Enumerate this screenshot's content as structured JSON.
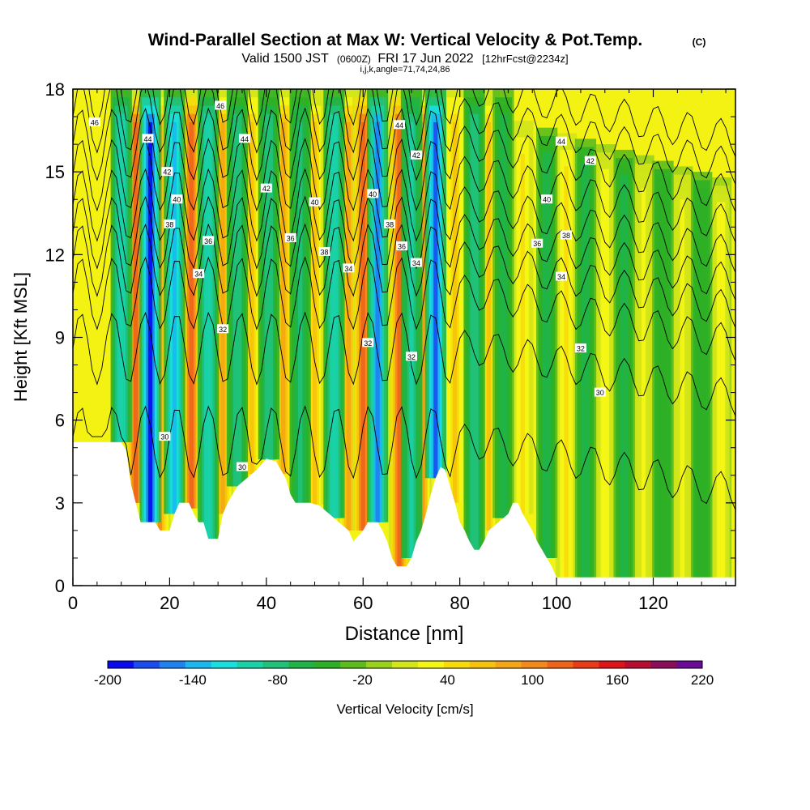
{
  "chart_data": {
    "type": "heatmap",
    "title": "Wind-Parallel Section at Max W: Vertical Velocity & Pot.Temp.",
    "title_mark": "(C)",
    "subtitle_main": "Valid 1500 JST",
    "subtitle_utc": "(0600Z)",
    "subtitle_date": "FRI 17 Jun 2022",
    "subtitle_fcst": "[12hrFcst@2234z]",
    "subtitle_index": "i,j,k,angle=71,74,24,86",
    "xlabel": "Distance [nm]",
    "ylabel": "Height [Kft MSL]",
    "xlim": [
      0,
      137
    ],
    "ylim": [
      0,
      18
    ],
    "x_ticks": [
      0,
      20,
      40,
      60,
      80,
      100,
      120
    ],
    "y_ticks": [
      0,
      3,
      6,
      9,
      12,
      15,
      18
    ],
    "colorbar": {
      "label": "Vertical Velocity [cm/s]",
      "min": -200,
      "max": 220,
      "step": 20,
      "tick_labels": [
        "-200",
        "-140",
        "-80",
        "-20",
        "40",
        "100",
        "160",
        "220"
      ],
      "colors": [
        "#0a0af0",
        "#1a4cf2",
        "#1e82f0",
        "#1ab8f0",
        "#18e0e0",
        "#1ad2a8",
        "#20c27a",
        "#20b448",
        "#2db026",
        "#5cbc1c",
        "#9ad21a",
        "#d2e61a",
        "#f6f614",
        "#f8dc0a",
        "#f6c20a",
        "#f4a614",
        "#f4881a",
        "#f0641a",
        "#ea3a18",
        "#de1418",
        "#b80c30",
        "#8c0c5a",
        "#6a0a96"
      ]
    },
    "updrafts": [
      {
        "x": 13.0,
        "w": 150
      },
      {
        "x": 18.0,
        "w": 120
      },
      {
        "x": 24.5,
        "w": 150
      },
      {
        "x": 31.0,
        "w": 110
      },
      {
        "x": 37.0,
        "w": 90
      },
      {
        "x": 43.5,
        "w": 100
      },
      {
        "x": 50.0,
        "w": 80
      },
      {
        "x": 57.0,
        "w": 110
      },
      {
        "x": 60.0,
        "w": 150
      },
      {
        "x": 67.5,
        "w": 150
      },
      {
        "x": 72.0,
        "w": 130
      },
      {
        "x": 79.0,
        "w": 90
      },
      {
        "x": 86.0,
        "w": 80
      },
      {
        "x": 93.0,
        "w": 70
      },
      {
        "x": 102.0,
        "w": 60
      },
      {
        "x": 110.0,
        "w": 50
      },
      {
        "x": 118.0,
        "w": 40
      },
      {
        "x": 126.0,
        "w": 40
      },
      {
        "x": 134.0,
        "w": 50
      }
    ],
    "downdrafts": [
      {
        "x": 10.0,
        "w": -100
      },
      {
        "x": 16.0,
        "w": -190
      },
      {
        "x": 21.0,
        "w": -140
      },
      {
        "x": 28.0,
        "w": -100
      },
      {
        "x": 34.0,
        "w": -80
      },
      {
        "x": 40.5,
        "w": -80
      },
      {
        "x": 47.0,
        "w": -70
      },
      {
        "x": 54.0,
        "w": -100
      },
      {
        "x": 63.0,
        "w": -160
      },
      {
        "x": 70.0,
        "w": -90
      },
      {
        "x": 75.0,
        "w": -170
      },
      {
        "x": 83.0,
        "w": -80
      },
      {
        "x": 89.0,
        "w": -60
      },
      {
        "x": 98.0,
        "w": -60
      },
      {
        "x": 106.0,
        "w": -50
      },
      {
        "x": 114.0,
        "w": -50
      },
      {
        "x": 122.0,
        "w": -40
      },
      {
        "x": 130.0,
        "w": -40
      }
    ],
    "contour_labels": [
      {
        "x": 4.5,
        "y": 16.8,
        "text": "46"
      },
      {
        "x": 15.5,
        "y": 16.2,
        "text": "44"
      },
      {
        "x": 19.5,
        "y": 15.0,
        "text": "42"
      },
      {
        "x": 21.5,
        "y": 14.0,
        "text": "40"
      },
      {
        "x": 20.0,
        "y": 13.1,
        "text": "38"
      },
      {
        "x": 26.0,
        "y": 11.3,
        "text": "34"
      },
      {
        "x": 28.0,
        "y": 12.5,
        "text": "36"
      },
      {
        "x": 31.0,
        "y": 9.3,
        "text": "32"
      },
      {
        "x": 30.5,
        "y": 17.4,
        "text": "46"
      },
      {
        "x": 35.5,
        "y": 16.2,
        "text": "44"
      },
      {
        "x": 40.0,
        "y": 14.4,
        "text": "42"
      },
      {
        "x": 45.0,
        "y": 12.6,
        "text": "36"
      },
      {
        "x": 50.0,
        "y": 13.9,
        "text": "40"
      },
      {
        "x": 52.0,
        "y": 12.1,
        "text": "38"
      },
      {
        "x": 57.0,
        "y": 11.5,
        "text": "34"
      },
      {
        "x": 61.0,
        "y": 8.8,
        "text": "32"
      },
      {
        "x": 62.0,
        "y": 14.2,
        "text": "40"
      },
      {
        "x": 65.5,
        "y": 13.1,
        "text": "38"
      },
      {
        "x": 68.0,
        "y": 12.3,
        "text": "36"
      },
      {
        "x": 67.5,
        "y": 16.7,
        "text": "44"
      },
      {
        "x": 71.0,
        "y": 15.6,
        "text": "42"
      },
      {
        "x": 71.0,
        "y": 11.7,
        "text": "34"
      },
      {
        "x": 70.0,
        "y": 8.3,
        "text": "32"
      },
      {
        "x": 101.0,
        "y": 16.1,
        "text": "44"
      },
      {
        "x": 107.0,
        "y": 15.4,
        "text": "42"
      },
      {
        "x": 98.0,
        "y": 14.0,
        "text": "40"
      },
      {
        "x": 96.0,
        "y": 12.4,
        "text": "36"
      },
      {
        "x": 102.0,
        "y": 12.7,
        "text": "38"
      },
      {
        "x": 101.0,
        "y": 11.2,
        "text": "34"
      },
      {
        "x": 105.0,
        "y": 8.6,
        "text": "32"
      },
      {
        "x": 109.0,
        "y": 7.0,
        "text": "30"
      },
      {
        "x": 19.0,
        "y": 5.4,
        "text": "30"
      },
      {
        "x": 35.0,
        "y": 4.3,
        "text": "30"
      }
    ]
  }
}
